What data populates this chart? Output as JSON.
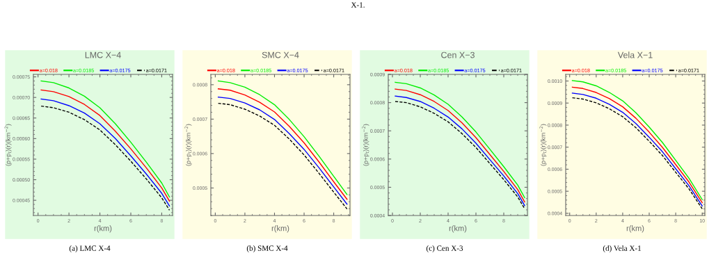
{
  "chart_data": [
    {
      "type": "line",
      "title": "LMC X−4",
      "xlabel": "r(km)",
      "ylabel": "(ρ+p$_{t}$)(r)(km$^{−2}$)",
      "legend": "top",
      "grid": false,
      "annotations": [
        "X-1.",
        "(a) LMC X-4"
      ],
      "x": [
        0.2,
        1,
        2,
        3,
        4,
        5,
        6,
        7,
        8,
        8.5
      ],
      "xlim": [
        -0.3,
        8.7
      ],
      "xticks": [
        0,
        2,
        4,
        6,
        8
      ],
      "ylim": [
        0.000413,
        0.000756
      ],
      "yticks": [
        {
          "value": 0.00045,
          "label": "0.00045"
        },
        {
          "value": 0.0005,
          "label": "0.00050"
        },
        {
          "value": 0.00055,
          "label": "0.00055"
        },
        {
          "value": 0.0006,
          "label": "0.00060"
        },
        {
          "value": 0.00065,
          "label": "0.00065"
        },
        {
          "value": 0.0007,
          "label": "0.00070"
        },
        {
          "value": 0.00075,
          "label": "0.00075"
        }
      ],
      "series": [
        {
          "name": "a=0.018",
          "color": "#ff0000",
          "line_style": "solid",
          "values": [
            0.000718,
            0.000714,
            0.000702,
            0.000683,
            0.000656,
            0.000618,
            0.000575,
            0.000529,
            0.00048,
            0.000448
          ]
        },
        {
          "name": "a=0.0185",
          "color": "#00ee00",
          "line_style": "solid",
          "values": [
            0.00074,
            0.000736,
            0.000723,
            0.000703,
            0.000675,
            0.000636,
            0.000591,
            0.000543,
            0.000492,
            0.000458
          ]
        },
        {
          "name": "a=0.0175",
          "color": "#0000ff",
          "line_style": "solid",
          "values": [
            0.000696,
            0.000692,
            0.00068,
            0.000662,
            0.000636,
            0.0006,
            0.000558,
            0.000514,
            0.000467,
            0.000436
          ]
        },
        {
          "name": "a=0.0171",
          "color": "#000000",
          "line_style": "dashed",
          "values": [
            0.000679,
            0.000675,
            0.000664,
            0.000646,
            0.000621,
            0.000585,
            0.000545,
            0.000502,
            0.000456,
            0.000426
          ]
        }
      ]
    },
    {
      "type": "line",
      "title": "SMC X−4",
      "xlabel": "r(km)",
      "ylabel": "(ρ+p$_{t}$)(r)(km$^{−2}$)",
      "legend": "top",
      "grid": false,
      "annotations": [
        "(b) SMC X-4"
      ],
      "x": [
        0.2,
        1,
        2,
        3,
        4,
        5,
        6,
        7,
        8,
        8.9
      ],
      "xlim": [
        -0.3,
        9.1
      ],
      "xticks": [
        0,
        2,
        4,
        6,
        8
      ],
      "ylim": [
        0.00042,
        0.00083
      ],
      "yticks": [
        0.0005,
        0.0006,
        0.0007,
        0.0008
      ],
      "series": [
        {
          "name": "a=0.018",
          "color": "#ff0000",
          "line_style": "solid",
          "values": [
            0.000788,
            0.000784,
            0.00077,
            0.000749,
            0.000721,
            0.000679,
            0.000631,
            0.000576,
            0.000518,
            0.000467
          ]
        },
        {
          "name": "a=0.0185",
          "color": "#00ee00",
          "line_style": "solid",
          "values": [
            0.000811,
            0.000806,
            0.000793,
            0.000771,
            0.000742,
            0.000699,
            0.000649,
            0.000593,
            0.000534,
            0.000481
          ]
        },
        {
          "name": "a=0.0175",
          "color": "#0000ff",
          "line_style": "solid",
          "values": [
            0.000764,
            0.00076,
            0.000747,
            0.000727,
            0.000699,
            0.000658,
            0.000612,
            0.000559,
            0.000503,
            0.000453
          ]
        },
        {
          "name": "a=0.0171",
          "color": "#000000",
          "line_style": "dashed",
          "values": [
            0.000746,
            0.000742,
            0.000729,
            0.000709,
            0.000682,
            0.000642,
            0.000596,
            0.000543,
            0.000488,
            0.000439
          ]
        }
      ]
    },
    {
      "type": "line",
      "title": "Cen X−3",
      "xlabel": "r(km)",
      "ylabel": "(ρ+p$_{t}$)(r)(km$^{−2}$)",
      "legend": "top",
      "grid": false,
      "annotations": [
        "(c) Cen X-3"
      ],
      "x": [
        0.2,
        1,
        2,
        3,
        4,
        5,
        6,
        7,
        8,
        9,
        9.5
      ],
      "xlim": [
        -0.3,
        9.7
      ],
      "xticks": [
        0,
        2,
        4,
        6,
        8
      ],
      "ylim": [
        0.0004,
        0.0009
      ],
      "yticks": [
        0.0004,
        0.0005,
        0.0006,
        0.0007,
        0.0008,
        0.0009
      ],
      "series": [
        {
          "name": "a=0.018",
          "color": "#ff0000",
          "line_style": "solid",
          "values": [
            0.000848,
            0.000843,
            0.000828,
            0.000804,
            0.000772,
            0.000728,
            0.000676,
            0.000616,
            0.000556,
            0.000492,
            0.000448
          ]
        },
        {
          "name": "a=0.0185",
          "color": "#00ee00",
          "line_style": "solid",
          "values": [
            0.000872,
            0.000867,
            0.000852,
            0.000827,
            0.000794,
            0.000749,
            0.000696,
            0.000635,
            0.000573,
            0.000508,
            0.000463
          ]
        },
        {
          "name": "a=0.0175",
          "color": "#0000ff",
          "line_style": "solid",
          "values": [
            0.000823,
            0.000818,
            0.000804,
            0.00078,
            0.000749,
            0.000707,
            0.000656,
            0.000598,
            0.00054,
            0.000478,
            0.000435
          ]
        },
        {
          "name": "a=0.0171",
          "color": "#000000",
          "line_style": "dashed",
          "values": [
            0.000804,
            0.0008,
            0.000785,
            0.000762,
            0.000732,
            0.00069,
            0.000641,
            0.000584,
            0.000527,
            0.000466,
            0.000424
          ]
        }
      ]
    },
    {
      "type": "line",
      "title": "Vela X−1",
      "xlabel": "r(km)",
      "ylabel": "(ρ+p$_{t}$)(r)(km$^{−2}$)",
      "legend": "top",
      "grid": false,
      "annotations": [
        "(d) Vela X-1"
      ],
      "x": [
        0.2,
        1,
        2,
        3,
        4,
        5,
        6,
        7,
        8,
        9,
        10
      ],
      "xlim": [
        -0.3,
        10.2
      ],
      "xticks": [
        0,
        2,
        4,
        6,
        8,
        10
      ],
      "ylim": [
        0.00039,
        0.00103
      ],
      "yticks": [
        {
          "value": 0.0004,
          "label": "0.0004"
        },
        {
          "value": 0.0005,
          "label": "0.0005"
        },
        {
          "value": 0.0006,
          "label": "0.0006"
        },
        {
          "value": 0.0007,
          "label": "0.0007"
        },
        {
          "value": 0.0008,
          "label": "0.0008"
        },
        {
          "value": 0.0009,
          "label": "0.0009"
        },
        {
          "value": 0.001,
          "label": "0.0010"
        }
      ],
      "series": [
        {
          "name": "a=0.018",
          "color": "#ff0000",
          "line_style": "solid",
          "values": [
            0.000972,
            0.000966,
            0.000948,
            0.00092,
            0.000883,
            0.000831,
            0.000768,
            0.000699,
            0.000621,
            0.000542,
            0.000448
          ]
        },
        {
          "name": "a=0.0185",
          "color": "#00ee00",
          "line_style": "solid",
          "values": [
            0.001002,
            0.000996,
            0.000978,
            0.000948,
            0.00091,
            0.000856,
            0.000791,
            0.000721,
            0.00064,
            0.000559,
            0.000462
          ]
        },
        {
          "name": "a=0.0175",
          "color": "#0000ff",
          "line_style": "solid",
          "values": [
            0.000945,
            0.000939,
            0.000922,
            0.000894,
            0.000858,
            0.000807,
            0.000745,
            0.000679,
            0.000602,
            0.000525,
            0.000433
          ]
        },
        {
          "name": "a=0.0171",
          "color": "#000000",
          "line_style": "dashed",
          "values": [
            0.000924,
            0.000918,
            0.000901,
            0.000874,
            0.000838,
            0.000788,
            0.000727,
            0.000662,
            0.000586,
            0.000511,
            0.00042
          ]
        }
      ]
    }
  ]
}
